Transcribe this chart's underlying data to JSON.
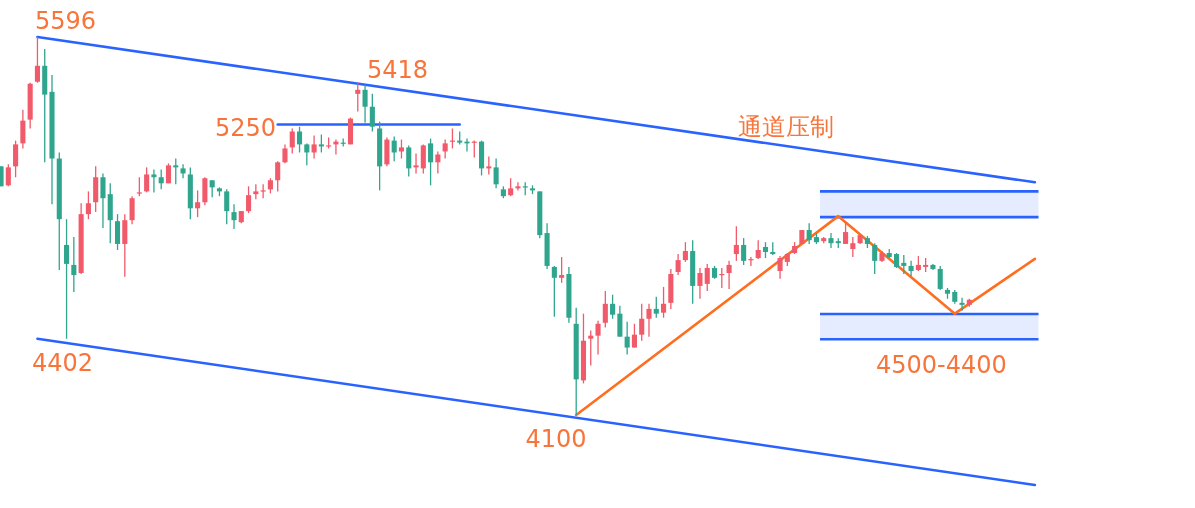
{
  "chart_data": {
    "type": "candlestick",
    "categories": [
      null,
      null,
      null,
      null,
      null,
      null,
      null,
      null,
      null,
      null,
      null,
      null,
      null,
      null,
      null,
      null,
      null,
      null,
      null,
      null,
      null,
      null,
      null,
      null,
      null,
      null,
      null,
      null,
      null,
      null,
      null,
      null,
      null,
      null,
      null,
      null,
      null,
      null,
      null,
      null,
      null,
      null,
      null,
      null,
      null,
      null,
      null,
      null,
      null,
      null,
      null,
      null,
      null,
      null,
      null,
      null,
      null,
      null,
      null,
      null,
      null,
      null,
      null,
      null,
      null,
      null,
      null,
      null,
      null,
      null,
      null,
      null,
      null,
      null,
      null,
      null,
      null,
      null,
      null,
      null,
      null,
      null,
      null,
      null,
      null,
      null,
      null,
      null,
      null,
      null,
      null,
      null,
      null,
      null,
      null,
      null,
      null,
      null,
      null,
      null,
      null,
      null,
      null,
      null,
      null,
      null,
      null,
      null,
      null,
      null,
      null,
      null,
      null,
      null,
      null,
      null,
      null,
      null,
      null,
      null,
      null,
      null,
      null,
      null,
      null,
      null,
      null,
      null,
      null,
      null,
      null,
      null,
      null,
      null,
      null,
      null,
      null,
      null,
      null,
      null,
      null,
      null,
      null
    ],
    "ohlc": [
      [
        5084,
        5084,
        5005,
        5005
      ],
      [
        5009,
        5092,
        5005,
        5080
      ],
      [
        5084,
        5186,
        5041,
        5171
      ],
      [
        5175,
        5308,
        5155,
        5265
      ],
      [
        5269,
        5415,
        5234,
        5411
      ],
      [
        5419,
        5596,
        5415,
        5482
      ],
      [
        5482,
        5549,
        5100,
        5368
      ],
      [
        5379,
        5446,
        4934,
        5115
      ],
      [
        5115,
        5139,
        4674,
        4875
      ],
      [
        4773,
        4875,
        4402,
        4698
      ],
      [
        4694,
        4804,
        4587,
        4654
      ],
      [
        4662,
        4938,
        4658,
        4895
      ],
      [
        4895,
        4985,
        4875,
        4938
      ],
      [
        4942,
        5084,
        4903,
        5041
      ],
      [
        5041,
        5056,
        4840,
        4958
      ],
      [
        4974,
        5017,
        4780,
        4871
      ],
      [
        4867,
        4895,
        4753,
        4777
      ],
      [
        4777,
        4895,
        4647,
        4871
      ],
      [
        4871,
        4966,
        4855,
        4958
      ],
      [
        4977,
        5041,
        4966,
        4981
      ],
      [
        4985,
        5080,
        4981,
        5052
      ],
      [
        5052,
        5072,
        4981,
        5041
      ],
      [
        5041,
        5072,
        4993,
        5017
      ],
      [
        5017,
        5096,
        5017,
        5088
      ],
      [
        5088,
        5115,
        5013,
        5080
      ],
      [
        5076,
        5092,
        5037,
        5056
      ],
      [
        5052,
        5080,
        4875,
        4918
      ],
      [
        4918,
        4989,
        4883,
        4942
      ],
      [
        4942,
        5041,
        4930,
        5037
      ],
      [
        5029,
        5029,
        4962,
        5001
      ],
      [
        4997,
        5001,
        4966,
        4985
      ],
      [
        4985,
        4993,
        4855,
        4907
      ],
      [
        4903,
        4934,
        4836,
        4871
      ],
      [
        4863,
        4907,
        4859,
        4907
      ],
      [
        4907,
        5005,
        4899,
        4970
      ],
      [
        4974,
        5013,
        4954,
        4985
      ],
      [
        4985,
        5013,
        4958,
        4989
      ],
      [
        4993,
        5037,
        4977,
        5029
      ],
      [
        5029,
        5104,
        4985,
        5100
      ],
      [
        5100,
        5171,
        5096,
        5155
      ],
      [
        5159,
        5234,
        5135,
        5222
      ],
      [
        5222,
        5241,
        5139,
        5171
      ],
      [
        5171,
        5175,
        5088,
        5139
      ],
      [
        5139,
        5206,
        5115,
        5171
      ],
      [
        5171,
        5210,
        5139,
        5163
      ],
      [
        5163,
        5198,
        5155,
        5167
      ],
      [
        5171,
        5190,
        5131,
        5182
      ],
      [
        5178,
        5194,
        5163,
        5175
      ],
      [
        5171,
        5277,
        5171,
        5273
      ],
      [
        5371,
        5418,
        5301,
        5387
      ],
      [
        5387,
        5407,
        5257,
        5320
      ],
      [
        5320,
        5371,
        5222,
        5241
      ],
      [
        5234,
        5261,
        4989,
        5084
      ],
      [
        5092,
        5198,
        5084,
        5190
      ],
      [
        5186,
        5202,
        5104,
        5139
      ],
      [
        5143,
        5190,
        5115,
        5159
      ],
      [
        5159,
        5167,
        5044,
        5076
      ],
      [
        5080,
        5135,
        5056,
        5088
      ],
      [
        5076,
        5171,
        5056,
        5167
      ],
      [
        5175,
        5194,
        5009,
        5100
      ],
      [
        5100,
        5143,
        5056,
        5131
      ],
      [
        5143,
        5190,
        5115,
        5175
      ],
      [
        5182,
        5234,
        5155,
        5186
      ],
      [
        5186,
        5222,
        5171,
        5178
      ],
      [
        5182,
        5194,
        5143,
        5175
      ],
      [
        5178,
        5186,
        5119,
        5182
      ],
      [
        5182,
        5186,
        5048,
        5076
      ],
      [
        5076,
        5123,
        5052,
        5084
      ],
      [
        5080,
        5115,
        4997,
        5013
      ],
      [
        4993,
        5005,
        4958,
        4966
      ],
      [
        4970,
        5037,
        4966,
        4997
      ],
      [
        4997,
        5021,
        4989,
        5005
      ],
      [
        5005,
        5021,
        4970,
        5001
      ],
      [
        4997,
        5009,
        4974,
        4989
      ],
      [
        4985,
        4985,
        4800,
        4812
      ],
      [
        4820,
        4859,
        4678,
        4690
      ],
      [
        4686,
        4690,
        4489,
        4643
      ],
      [
        4643,
        4725,
        4623,
        4654
      ],
      [
        4658,
        4686,
        4465,
        4485
      ],
      [
        4461,
        4524,
        4100,
        4241
      ],
      [
        4237,
        4501,
        4225,
        4394
      ],
      [
        4402,
        4434,
        4296,
        4414
      ],
      [
        4414,
        4473,
        4339,
        4461
      ],
      [
        4465,
        4591,
        4446,
        4540
      ],
      [
        4540,
        4576,
        4481,
        4497
      ],
      [
        4501,
        4532,
        4410,
        4410
      ],
      [
        4410,
        4469,
        4339,
        4367
      ],
      [
        4367,
        4461,
        4367,
        4418
      ],
      [
        4418,
        4540,
        4394,
        4481
      ],
      [
        4481,
        4540,
        4410,
        4520
      ],
      [
        4520,
        4568,
        4485,
        4501
      ],
      [
        4505,
        4607,
        4485,
        4540
      ],
      [
        4544,
        4678,
        4520,
        4658
      ],
      [
        4666,
        4737,
        4654,
        4713
      ],
      [
        4713,
        4784,
        4706,
        4749
      ],
      [
        4749,
        4792,
        4540,
        4611
      ],
      [
        4611,
        4682,
        4560,
        4662
      ],
      [
        4619,
        4698,
        4591,
        4682
      ],
      [
        4682,
        4690,
        4639,
        4643
      ],
      [
        4654,
        4682,
        4603,
        4658
      ],
      [
        4662,
        4710,
        4599,
        4694
      ],
      [
        4737,
        4847,
        4710,
        4773
      ],
      [
        4773,
        4800,
        4694,
        4710
      ],
      [
        4713,
        4725,
        4690,
        4717
      ],
      [
        4721,
        4792,
        4717,
        4753
      ],
      [
        4765,
        4784,
        4721,
        4745
      ],
      [
        4745,
        4784,
        4733,
        4737
      ],
      [
        4670,
        4729,
        4639,
        4721
      ],
      [
        4706,
        4741,
        4690,
        4737
      ],
      [
        4741,
        4784,
        4737,
        4769
      ],
      [
        4777,
        4832,
        4777,
        4832
      ],
      [
        4832,
        4859,
        4777,
        4792
      ],
      [
        4804,
        4820,
        4777,
        4784
      ],
      [
        4788,
        4804,
        4780,
        4800
      ],
      [
        4800,
        4820,
        4761,
        4780
      ],
      [
        4788,
        4800,
        4761,
        4780
      ],
      [
        4777,
        4863,
        4777,
        4824
      ],
      [
        4757,
        4804,
        4725,
        4780
      ],
      [
        4780,
        4812,
        4777,
        4812
      ],
      [
        4800,
        4808,
        4761,
        4777
      ],
      [
        4773,
        4780,
        4658,
        4710
      ],
      [
        4710,
        4749,
        4706,
        4741
      ],
      [
        4741,
        4757,
        4721,
        4725
      ],
      [
        4737,
        4741,
        4682,
        4686
      ],
      [
        4702,
        4733,
        4658,
        4690
      ],
      [
        4690,
        4710,
        4650,
        4670
      ],
      [
        4674,
        4729,
        4670,
        4694
      ],
      [
        4686,
        4721,
        4666,
        4694
      ],
      [
        4694,
        4698,
        4674,
        4678
      ],
      [
        4678,
        4690,
        4595,
        4599
      ],
      [
        4595,
        4603,
        4560,
        4580
      ],
      [
        4587,
        4595,
        4540,
        4548
      ],
      [
        4544,
        4564,
        4513,
        4536
      ],
      [
        4536,
        4560,
        4528,
        4556
      ],
      null,
      null,
      null,
      null,
      null,
      null,
      null,
      null,
      null
    ],
    "bands": [
      {
        "axis": "y",
        "from": 4883,
        "to": 4985,
        "color": "#2962ff"
      },
      {
        "axis": "y",
        "from": 4400,
        "to": 4500,
        "color": "#2962ff"
      }
    ],
    "series": [
      {
        "type": "line",
        "color": "#2962ff",
        "values": [
          null,
          null,
          null,
          null,
          null,
          5596,
          null,
          null,
          null,
          null,
          null,
          null,
          null,
          null,
          null,
          null,
          null,
          null,
          null,
          null,
          null,
          null,
          null,
          null,
          null,
          null,
          null,
          null,
          null,
          null,
          null,
          null,
          null,
          null,
          null,
          null,
          null,
          null,
          null,
          null,
          null,
          null,
          null,
          null,
          null,
          null,
          null,
          null,
          null,
          null,
          null,
          null,
          null,
          null,
          null,
          null,
          null,
          null,
          null,
          null,
          null,
          null,
          null,
          null,
          null,
          null,
          null,
          null,
          null,
          null,
          null,
          null,
          null,
          null,
          null,
          null,
          null,
          null,
          null,
          null,
          null,
          null,
          null,
          null,
          null,
          null,
          null,
          null,
          null,
          null,
          null,
          null,
          null,
          null,
          null,
          null,
          null,
          null,
          null,
          null,
          null,
          null,
          null,
          null,
          null,
          null,
          null,
          null,
          null,
          null,
          null,
          null,
          null,
          null,
          null,
          null,
          null,
          null,
          null,
          null,
          null,
          null,
          null,
          null,
          null,
          null,
          null,
          null,
          null,
          null,
          null,
          null,
          null,
          null,
          null,
          null,
          null,
          null,
          null,
          null,
          null,
          null,
          5021
        ]
      },
      {
        "type": "line",
        "color": "#2962ff",
        "values": [
          null,
          null,
          null,
          null,
          null,
          4402,
          null,
          null,
          null,
          null,
          null,
          null,
          null,
          null,
          null,
          null,
          null,
          null,
          null,
          null,
          null,
          null,
          null,
          null,
          null,
          null,
          null,
          null,
          null,
          null,
          null,
          null,
          null,
          null,
          null,
          null,
          null,
          null,
          null,
          null,
          null,
          null,
          null,
          null,
          null,
          null,
          null,
          null,
          null,
          null,
          null,
          null,
          null,
          null,
          null,
          null,
          null,
          null,
          null,
          null,
          null,
          null,
          null,
          null,
          null,
          null,
          null,
          null,
          null,
          null,
          null,
          null,
          null,
          null,
          null,
          null,
          null,
          null,
          null,
          null,
          null,
          null,
          null,
          null,
          null,
          null,
          null,
          null,
          null,
          null,
          null,
          null,
          null,
          null,
          null,
          null,
          null,
          null,
          null,
          null,
          null,
          null,
          null,
          null,
          null,
          null,
          null,
          null,
          null,
          null,
          null,
          null,
          null,
          null,
          null,
          null,
          null,
          null,
          null,
          null,
          null,
          null,
          null,
          null,
          null,
          null,
          null,
          null,
          null,
          null,
          null,
          null,
          null,
          null,
          null,
          null,
          null,
          null,
          null,
          null,
          null,
          null,
          3823
        ]
      },
      {
        "type": "line",
        "color": "#2962ff",
        "values": [
          null,
          null,
          null,
          null,
          null,
          null,
          null,
          null,
          null,
          null,
          null,
          null,
          null,
          null,
          null,
          null,
          null,
          null,
          null,
          null,
          null,
          null,
          null,
          null,
          null,
          null,
          null,
          null,
          null,
          null,
          null,
          null,
          null,
          null,
          null,
          null,
          null,
          null,
          5250,
          null,
          null,
          null,
          null,
          null,
          null,
          null,
          null,
          null,
          null,
          null,
          null,
          null,
          null,
          null,
          null,
          null,
          null,
          null,
          null,
          null,
          null,
          null,
          null,
          5250,
          null,
          null,
          null,
          null,
          null,
          null,
          null,
          null,
          null,
          null,
          null,
          null,
          null,
          null,
          null,
          null,
          null,
          null,
          null,
          null,
          null,
          null,
          null,
          null,
          null,
          null,
          null,
          null,
          null,
          null,
          null,
          null,
          null,
          null,
          null,
          null,
          null,
          null,
          null,
          null,
          null,
          null,
          null,
          null,
          null,
          null,
          null,
          null,
          null,
          null,
          null,
          null,
          null,
          null,
          null,
          null,
          null,
          null,
          null,
          null,
          null,
          null,
          null,
          null,
          null,
          null,
          null,
          null,
          null,
          null,
          null,
          null,
          null,
          null,
          null,
          null,
          null,
          null,
          null
        ]
      },
      {
        "type": "line",
        "color": "#ff6d1f",
        "values": [
          null,
          null,
          null,
          null,
          null,
          null,
          null,
          null,
          null,
          null,
          null,
          null,
          null,
          null,
          null,
          null,
          null,
          null,
          null,
          null,
          null,
          null,
          null,
          null,
          null,
          null,
          null,
          null,
          null,
          null,
          null,
          null,
          null,
          null,
          null,
          null,
          null,
          null,
          null,
          null,
          null,
          null,
          null,
          null,
          null,
          null,
          null,
          null,
          null,
          null,
          null,
          null,
          null,
          null,
          null,
          null,
          null,
          null,
          null,
          null,
          null,
          null,
          null,
          null,
          null,
          null,
          null,
          null,
          null,
          null,
          null,
          null,
          null,
          null,
          null,
          null,
          null,
          null,
          null,
          4100,
          null,
          null,
          null,
          null,
          null,
          null,
          null,
          null,
          null,
          null,
          null,
          null,
          null,
          null,
          null,
          null,
          null,
          null,
          null,
          null,
          null,
          null,
          null,
          null,
          null,
          null,
          null,
          null,
          null,
          null,
          null,
          null,
          null,
          null,
          null,
          4887,
          null,
          null,
          null,
          null,
          null,
          null,
          null,
          null,
          null,
          null,
          null,
          null,
          null,
          null,
          null,
          4501,
          null,
          null,
          null,
          null,
          null,
          null,
          null,
          null,
          null,
          null,
          4718
        ]
      }
    ],
    "annotations": [
      {
        "text": "5596",
        "y": 5596
      },
      "5418",
      "5250",
      {
        "text": "4402",
        "y": 4402
      },
      {
        "text": "4100",
        "y": 4100
      },
      {
        "text": "通道压制",
        "y": 5160
      },
      {
        "text": "4500-4400",
        "y": 4400
      }
    ]
  }
}
